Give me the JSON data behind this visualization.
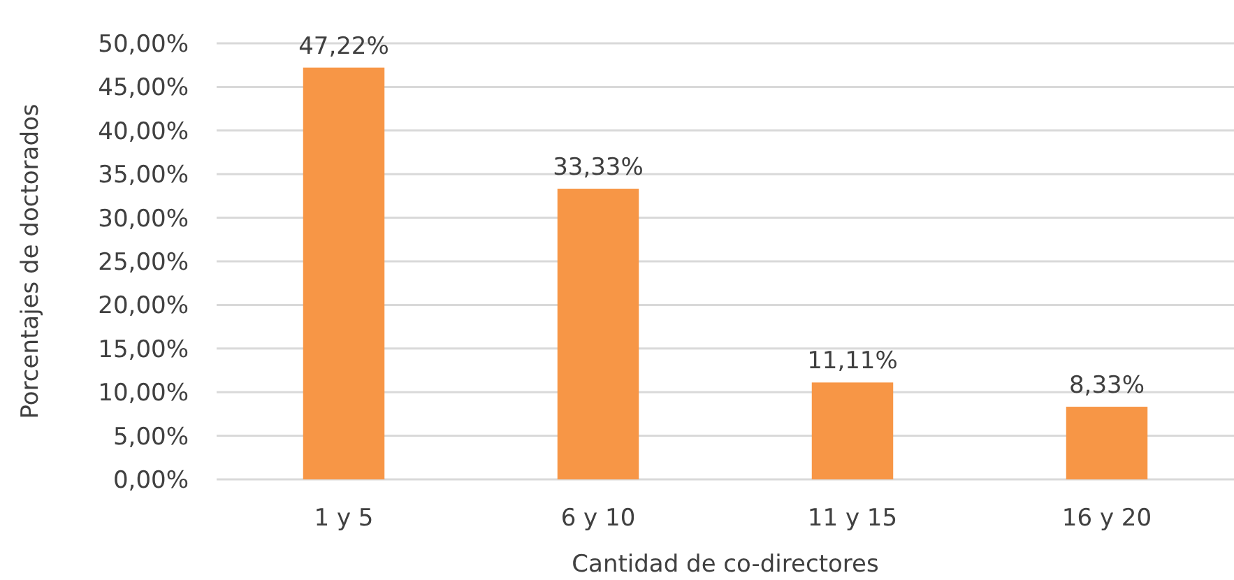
{
  "chart_data": {
    "type": "bar",
    "xlabel": "Cantidad de co-directores",
    "ylabel": "Porcentajes de doctorados",
    "categories": [
      "1 y 5",
      "6 y 10",
      "11 y 15",
      "16 y 20"
    ],
    "values": [
      47.22,
      33.33,
      11.11,
      8.33
    ],
    "value_labels": [
      "47,22%",
      "33,33%",
      "11,11%",
      "8,33%"
    ],
    "color": "#f79646",
    "ylim": [
      0,
      50
    ],
    "yticks": [
      {
        "value": 0,
        "label": "0,00%"
      },
      {
        "value": 5,
        "label": "5,00%"
      },
      {
        "value": 10,
        "label": "10,00%"
      },
      {
        "value": 15,
        "label": "15,00%"
      },
      {
        "value": 20,
        "label": "20,00%"
      },
      {
        "value": 25,
        "label": "25,00%"
      },
      {
        "value": 30,
        "label": "30,00%"
      },
      {
        "value": 35,
        "label": "35,00%"
      },
      {
        "value": 40,
        "label": "40,00%"
      },
      {
        "value": 45,
        "label": "45,00%"
      },
      {
        "value": 50,
        "label": "50,00%"
      }
    ],
    "grid": "y"
  }
}
